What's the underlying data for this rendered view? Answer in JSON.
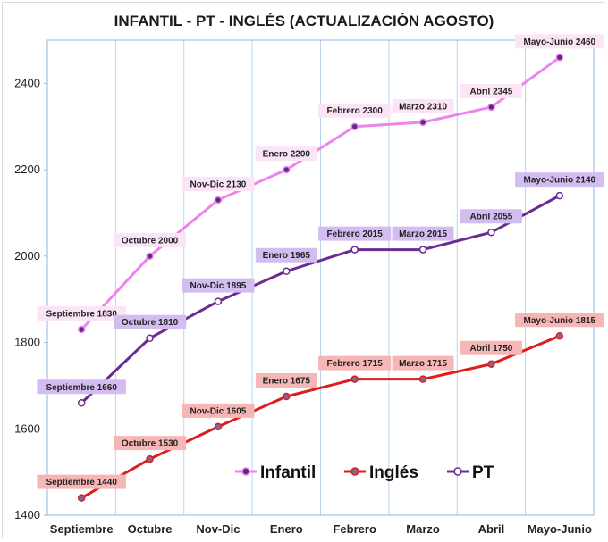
{
  "chart_data": {
    "type": "line",
    "title": "INFANTIL - PT - INGLÉS (ACTUALIZACIÓN AGOSTO)",
    "xlabel": "",
    "ylabel": "",
    "categories": [
      "Septiembre",
      "Octubre",
      "Nov-Dic",
      "Enero",
      "Febrero",
      "Marzo",
      "Abril",
      "Mayo-Junio"
    ],
    "ylim": [
      1400,
      2500
    ],
    "yticks": [
      1400,
      1600,
      1800,
      2000,
      2200,
      2400
    ],
    "grid": "vertical",
    "legend_position": "bottom-right",
    "series": [
      {
        "name": "Infantil",
        "color": "#ee82ee",
        "marker_fill": "#5a2d82",
        "label_bg": "#fce4f7",
        "values": [
          1830,
          2000,
          2130,
          2200,
          2300,
          2310,
          2345,
          2460
        ],
        "labels": [
          "Septiembre 1830",
          "Octubre 2000",
          "Nov-Dic 2130",
          "Enero 2200",
          "Febrero 2300",
          "Marzo 2310",
          "Abril 2345",
          "Mayo-Junio 2460"
        ]
      },
      {
        "name": "Inglés",
        "color": "#dc1e1e",
        "marker_fill": "#7a6a9a",
        "label_bg": "#f7b6b6",
        "values": [
          1440,
          1530,
          1605,
          1675,
          1715,
          1715,
          1750,
          1815
        ],
        "labels": [
          "Septiembre 1440",
          "Octubre 1530",
          "Nov-Dic 1605",
          "Enero 1675",
          "Febrero 1715",
          "Marzo 1715",
          "Abril 1750",
          "Mayo-Junio 1815"
        ]
      },
      {
        "name": "PT",
        "color": "#6a2c91",
        "marker_fill": "#ffffff",
        "label_bg": "#d3bdf0",
        "values": [
          1660,
          1810,
          1895,
          1965,
          2015,
          2015,
          2055,
          2140
        ],
        "labels": [
          "Septiembre 1660",
          "Octubre 1810",
          "Nov-Dic 1895",
          "Enero 1965",
          "Febrero 2015",
          "Marzo 2015",
          "Abril 2055",
          "Mayo-Junio 2140"
        ]
      }
    ]
  }
}
